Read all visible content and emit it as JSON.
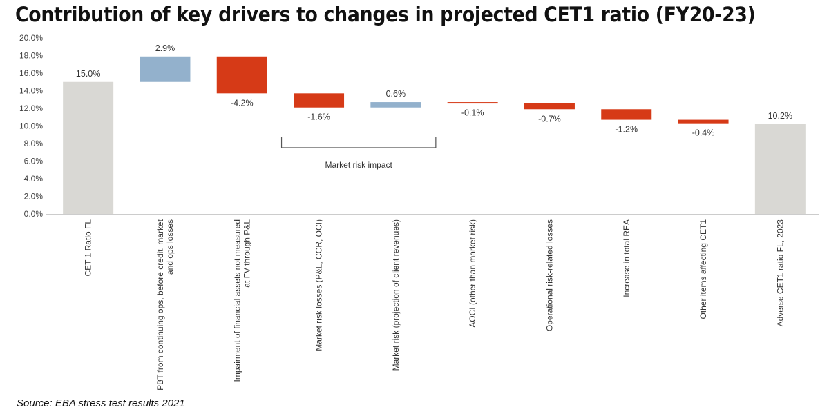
{
  "title": "Contribution of key drivers to changes in projected CET1 ratio (FY20-23)",
  "source": "Source: EBA stress test results 2021",
  "colors": {
    "total": "#d9d8d4",
    "increase": "#93b1cc",
    "decrease": "#d63a17",
    "axis": "#cccccc"
  },
  "chart_data": {
    "type": "bar",
    "subtype": "waterfall",
    "title": "Contribution of key drivers to changes in projected CET1 ratio (FY20-23)",
    "xlabel": "",
    "ylabel": "",
    "ylim": [
      0,
      20
    ],
    "yticks": [
      "0.0%",
      "2.0%",
      "4.0%",
      "6.0%",
      "8.0%",
      "10.0%",
      "12.0%",
      "14.0%",
      "16.0%",
      "18.0%",
      "20.0%"
    ],
    "categories": [
      [
        "CET 1 Ratio FL"
      ],
      [
        "PBT from continuing ops, before credit, market",
        "and ops losses"
      ],
      [
        "Impairment of financial assets not measured",
        "at FV through P&L"
      ],
      [
        "Market risk losses (P&L, CCR, OCI)"
      ],
      [
        "Market risk (projection of client revenues)"
      ],
      [
        "AOCI (other than market risk)"
      ],
      [
        "Operational risk-related losses"
      ],
      [
        "Increase in total REA"
      ],
      [
        "Other items affecting CET1"
      ],
      [
        "Adverse CET1 ratio FL, 2023"
      ]
    ],
    "values": [
      15.0,
      2.9,
      -4.2,
      -1.6,
      0.6,
      -0.1,
      -0.7,
      -1.2,
      -0.4,
      10.2
    ],
    "kinds": [
      "total",
      "delta",
      "delta",
      "delta",
      "delta",
      "delta",
      "delta",
      "delta",
      "delta",
      "total"
    ],
    "data_labels": [
      "15.0%",
      "2.9%",
      "-4.2%",
      "-1.6%",
      "0.6%",
      "-0.1%",
      "-0.7%",
      "-1.2%",
      "-0.4%",
      "10.2%"
    ],
    "annotations": [
      {
        "text": "Market risk impact",
        "spans_categories": [
          3,
          4
        ]
      }
    ]
  }
}
